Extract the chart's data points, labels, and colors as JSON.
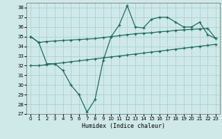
{
  "xlabel": "Humidex (Indice chaleur)",
  "bg_color": "#cfe8e8",
  "grid_color": "#a8cccc",
  "line_color": "#1a6b5a",
  "xlim": [
    -0.5,
    23.5
  ],
  "ylim": [
    27,
    38.5
  ],
  "yticks": [
    27,
    28,
    29,
    30,
    31,
    32,
    33,
    34,
    35,
    36,
    37,
    38
  ],
  "xticks": [
    0,
    1,
    2,
    3,
    4,
    5,
    6,
    7,
    8,
    9,
    10,
    11,
    12,
    13,
    14,
    15,
    16,
    17,
    18,
    19,
    20,
    21,
    22,
    23
  ],
  "line1_x": [
    0,
    1,
    2,
    3,
    4,
    5,
    6,
    7,
    8,
    9,
    10,
    11,
    12,
    13,
    14,
    15,
    16,
    17,
    18,
    19,
    20,
    21,
    22,
    23
  ],
  "line1_y": [
    35.0,
    34.4,
    32.2,
    32.2,
    31.5,
    30.0,
    29.0,
    27.2,
    28.5,
    32.5,
    35.0,
    36.2,
    38.2,
    36.0,
    35.9,
    36.8,
    37.0,
    37.0,
    36.5,
    36.0,
    36.0,
    36.5,
    35.2,
    34.8
  ],
  "line2_x": [
    0,
    1,
    2,
    3,
    4,
    5,
    6,
    7,
    8,
    9,
    10,
    11,
    12,
    13,
    14,
    15,
    16,
    17,
    18,
    19,
    20,
    21,
    22,
    23
  ],
  "line2_y": [
    35.0,
    34.4,
    34.5,
    34.55,
    34.6,
    34.65,
    34.7,
    34.75,
    34.8,
    34.9,
    35.0,
    35.1,
    35.2,
    35.3,
    35.35,
    35.4,
    35.5,
    35.55,
    35.65,
    35.7,
    35.75,
    35.8,
    35.85,
    34.8
  ],
  "line3_x": [
    0,
    1,
    2,
    3,
    4,
    5,
    6,
    7,
    8,
    9,
    10,
    11,
    12,
    13,
    14,
    15,
    16,
    17,
    18,
    19,
    20,
    21,
    22,
    23
  ],
  "line3_y": [
    32.0,
    32.0,
    32.1,
    32.2,
    32.3,
    32.4,
    32.5,
    32.6,
    32.7,
    32.8,
    32.9,
    33.0,
    33.1,
    33.2,
    33.3,
    33.4,
    33.5,
    33.6,
    33.7,
    33.8,
    33.9,
    34.0,
    34.1,
    34.2
  ]
}
